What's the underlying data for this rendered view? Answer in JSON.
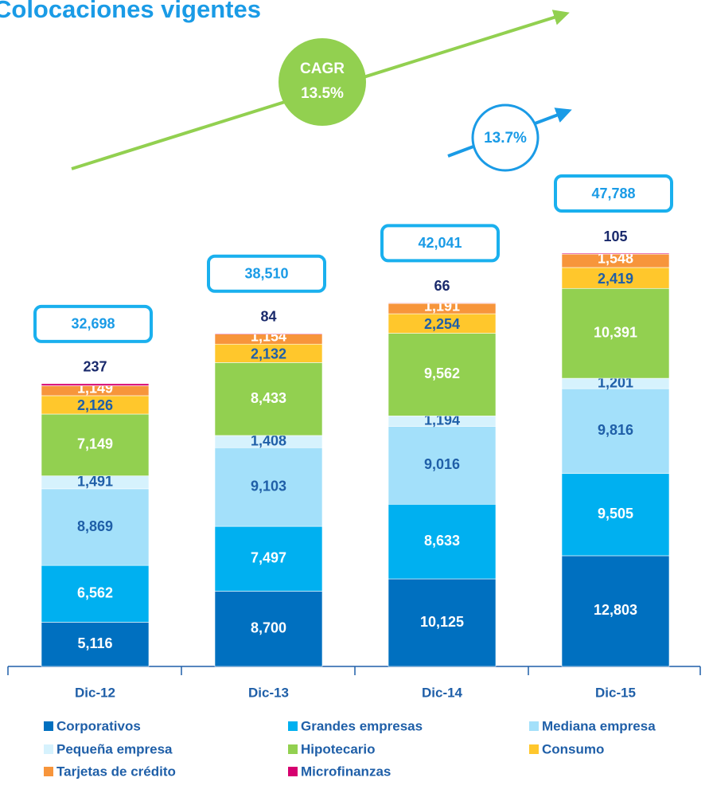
{
  "chart_data": {
    "type": "stacked_bar",
    "title": "Colocaciones vigentes",
    "categories": [
      "Dic-12",
      "Dic-13",
      "Dic-14",
      "Dic-15"
    ],
    "series": [
      {
        "name": "Corporativos",
        "color": "#0070c0",
        "values": [
          5116,
          8700,
          10125,
          12803
        ],
        "value_labels": [
          "5,116",
          "8,700",
          "10,125",
          "12,803"
        ]
      },
      {
        "name": "Grandes empresas",
        "color": "#00b0f0",
        "values": [
          6562,
          7497,
          8633,
          9505
        ],
        "value_labels": [
          "6,562",
          "7,497",
          "8,633",
          "9,505"
        ]
      },
      {
        "name": "Mediana empresa",
        "color": "#a3e0fa",
        "values": [
          8869,
          9103,
          9016,
          9816
        ],
        "value_labels": [
          "8,869",
          "9,103",
          "9,016",
          "9,816"
        ]
      },
      {
        "name": "Pequeña empresa",
        "color": "#d6f2fd",
        "values": [
          1491,
          1408,
          1194,
          1201
        ],
        "value_labels": [
          "1,491",
          "1,408",
          "1,194",
          "1,201"
        ]
      },
      {
        "name": "Hipotecario",
        "color": "#92d050",
        "values": [
          7149,
          8433,
          9562,
          10391
        ],
        "value_labels": [
          "7,149",
          "8,433",
          "9,562",
          "10,391"
        ]
      },
      {
        "name": "Consumo",
        "color": "#ffc72c",
        "values": [
          2126,
          2132,
          2254,
          2419
        ],
        "value_labels": [
          "2,126",
          "2,132",
          "2,254",
          "2,419"
        ]
      },
      {
        "name": "Tarjetas de crédito",
        "color": "#f7953b",
        "values": [
          1149,
          1154,
          1191,
          1548
        ],
        "value_labels": [
          "1,149",
          "1,154",
          "1,191",
          "1,548"
        ]
      },
      {
        "name": "Microfinanzas",
        "color": "#d6006f",
        "values": [
          237,
          84,
          66,
          105
        ]
      }
    ],
    "totals": {
      "values": [
        32698,
        38510,
        42041,
        47788
      ],
      "value_labels": [
        "32,698",
        "38,510",
        "42,041",
        "47,788"
      ]
    },
    "annotations": {
      "cagr_label": "CAGR",
      "cagr_value": "13.5%",
      "growth_value": "13.7%"
    }
  }
}
